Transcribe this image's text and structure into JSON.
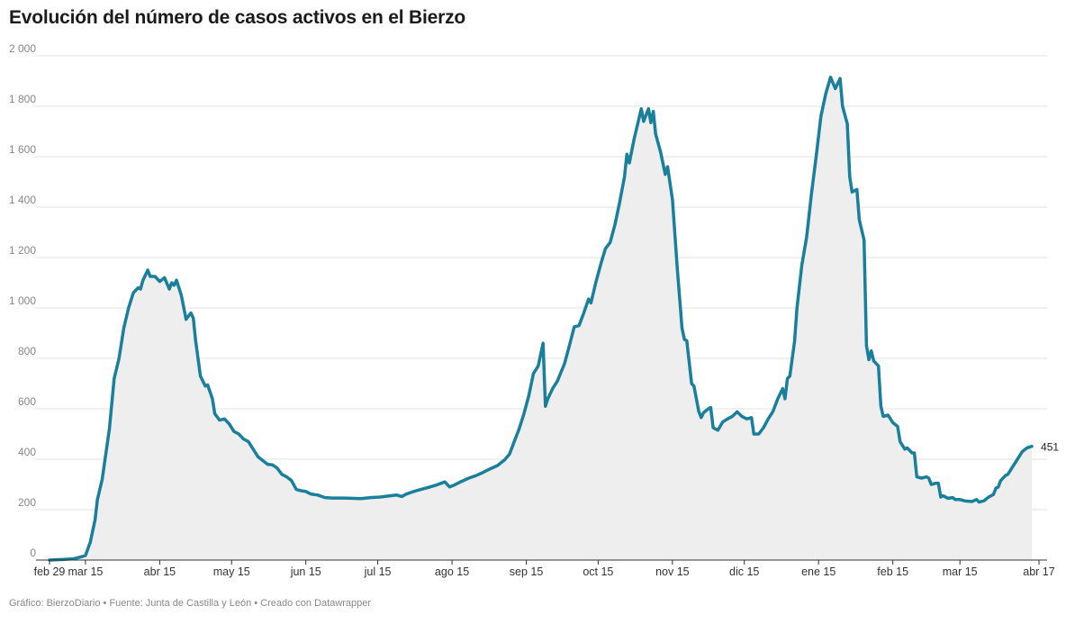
{
  "title": "Evolución del número de casos activos en el Bierzo",
  "footer": "Gráfico: BierzoDiario • Fuente: Junta de Castilla y León • Creado con Datawrapper",
  "colors": {
    "line": "#1a7f9b",
    "area": "#eeeeee",
    "grid": "#e2e2e2",
    "axis": "#333333"
  },
  "chart_data": {
    "type": "area",
    "title": "Evolución del número de casos activos en el Bierzo",
    "xlabel": "",
    "ylabel": "",
    "x_start": "2020-02-29",
    "x_end": "2021-04-17",
    "ylim": [
      0,
      2000
    ],
    "y_ticks": [
      0,
      200,
      400,
      600,
      800,
      1000,
      1200,
      1400,
      1600,
      1800,
      2000
    ],
    "y_tick_labels": [
      "0",
      "200",
      "400",
      "600",
      "800",
      "1 000",
      "1 200",
      "1 400",
      "1 600",
      "1 800",
      "2 000"
    ],
    "x_ticks": [
      {
        "date": "2020-02-29",
        "label": "feb 29"
      },
      {
        "date": "2020-03-15",
        "label": "mar 15"
      },
      {
        "date": "2020-04-15",
        "label": "abr 15"
      },
      {
        "date": "2020-05-15",
        "label": "may 15"
      },
      {
        "date": "2020-06-15",
        "label": "jun 15"
      },
      {
        "date": "2020-07-15",
        "label": "jul 15"
      },
      {
        "date": "2020-08-15",
        "label": "ago 15"
      },
      {
        "date": "2020-09-15",
        "label": "sep 15"
      },
      {
        "date": "2020-10-15",
        "label": "oct 15"
      },
      {
        "date": "2020-11-15",
        "label": "nov 15"
      },
      {
        "date": "2020-12-15",
        "label": "dic 15"
      },
      {
        "date": "2021-01-15",
        "label": "ene 15"
      },
      {
        "date": "2021-02-15",
        "label": "feb 15"
      },
      {
        "date": "2021-03-15",
        "label": "mar 15"
      },
      {
        "date": "2021-04-17",
        "label": "abr 17"
      }
    ],
    "grid": true,
    "end_label": "451",
    "series": [
      {
        "values": [
          [
            "2020-02-29",
            0
          ],
          [
            "2020-03-05",
            2
          ],
          [
            "2020-03-10",
            5
          ],
          [
            "2020-03-13",
            12
          ],
          [
            "2020-03-15",
            18
          ],
          [
            "2020-03-17",
            70
          ],
          [
            "2020-03-19",
            160
          ],
          [
            "2020-03-20",
            240
          ],
          [
            "2020-03-22",
            320
          ],
          [
            "2020-03-25",
            520
          ],
          [
            "2020-03-27",
            720
          ],
          [
            "2020-03-29",
            800
          ],
          [
            "2020-03-31",
            920
          ],
          [
            "2020-04-02",
            1000
          ],
          [
            "2020-04-04",
            1060
          ],
          [
            "2020-04-06",
            1080
          ],
          [
            "2020-04-07",
            1075
          ],
          [
            "2020-04-08",
            1110
          ],
          [
            "2020-04-10",
            1150
          ],
          [
            "2020-04-11",
            1125
          ],
          [
            "2020-04-13",
            1125
          ],
          [
            "2020-04-15",
            1105
          ],
          [
            "2020-04-17",
            1120
          ],
          [
            "2020-04-19",
            1075
          ],
          [
            "2020-04-20",
            1100
          ],
          [
            "2020-04-21",
            1090
          ],
          [
            "2020-04-22",
            1110
          ],
          [
            "2020-04-24",
            1050
          ],
          [
            "2020-04-26",
            955
          ],
          [
            "2020-04-28",
            980
          ],
          [
            "2020-04-29",
            960
          ],
          [
            "2020-04-30",
            870
          ],
          [
            "2020-05-02",
            730
          ],
          [
            "2020-05-04",
            690
          ],
          [
            "2020-05-05",
            695
          ],
          [
            "2020-05-07",
            640
          ],
          [
            "2020-05-08",
            580
          ],
          [
            "2020-05-10",
            555
          ],
          [
            "2020-05-12",
            560
          ],
          [
            "2020-05-14",
            540
          ],
          [
            "2020-05-16",
            510
          ],
          [
            "2020-05-18",
            500
          ],
          [
            "2020-05-20",
            480
          ],
          [
            "2020-05-22",
            470
          ],
          [
            "2020-05-24",
            440
          ],
          [
            "2020-05-26",
            410
          ],
          [
            "2020-05-28",
            395
          ],
          [
            "2020-05-30",
            380
          ],
          [
            "2020-06-01",
            378
          ],
          [
            "2020-06-03",
            365
          ],
          [
            "2020-06-05",
            340
          ],
          [
            "2020-06-07",
            330
          ],
          [
            "2020-06-09",
            315
          ],
          [
            "2020-06-11",
            280
          ],
          [
            "2020-06-13",
            275
          ],
          [
            "2020-06-15",
            272
          ],
          [
            "2020-06-17",
            262
          ],
          [
            "2020-06-20",
            258
          ],
          [
            "2020-06-23",
            248
          ],
          [
            "2020-06-26",
            246
          ],
          [
            "2020-06-30",
            246
          ],
          [
            "2020-07-04",
            245
          ],
          [
            "2020-07-08",
            244
          ],
          [
            "2020-07-12",
            248
          ],
          [
            "2020-07-16",
            250
          ],
          [
            "2020-07-20",
            255
          ],
          [
            "2020-07-23",
            258
          ],
          [
            "2020-07-25",
            252
          ],
          [
            "2020-07-27",
            262
          ],
          [
            "2020-07-30",
            272
          ],
          [
            "2020-08-02",
            280
          ],
          [
            "2020-08-05",
            288
          ],
          [
            "2020-08-08",
            296
          ],
          [
            "2020-08-12",
            310
          ],
          [
            "2020-08-14",
            290
          ],
          [
            "2020-08-16",
            298
          ],
          [
            "2020-08-19",
            312
          ],
          [
            "2020-08-22",
            325
          ],
          [
            "2020-08-25",
            335
          ],
          [
            "2020-08-28",
            348
          ],
          [
            "2020-08-31",
            362
          ],
          [
            "2020-09-03",
            375
          ],
          [
            "2020-09-06",
            398
          ],
          [
            "2020-09-08",
            420
          ],
          [
            "2020-09-10",
            470
          ],
          [
            "2020-09-12",
            520
          ],
          [
            "2020-09-14",
            580
          ],
          [
            "2020-09-16",
            650
          ],
          [
            "2020-09-18",
            740
          ],
          [
            "2020-09-20",
            770
          ],
          [
            "2020-09-22",
            860
          ],
          [
            "2020-09-23",
            610
          ],
          [
            "2020-09-24",
            640
          ],
          [
            "2020-09-26",
            680
          ],
          [
            "2020-09-28",
            710
          ],
          [
            "2020-10-01",
            780
          ],
          [
            "2020-10-03",
            850
          ],
          [
            "2020-10-05",
            925
          ],
          [
            "2020-10-07",
            930
          ],
          [
            "2020-10-09",
            980
          ],
          [
            "2020-10-11",
            1035
          ],
          [
            "2020-10-12",
            1020
          ],
          [
            "2020-10-14",
            1100
          ],
          [
            "2020-10-16",
            1170
          ],
          [
            "2020-10-18",
            1235
          ],
          [
            "2020-10-20",
            1260
          ],
          [
            "2020-10-22",
            1330
          ],
          [
            "2020-10-24",
            1420
          ],
          [
            "2020-10-26",
            1520
          ],
          [
            "2020-10-27",
            1610
          ],
          [
            "2020-10-28",
            1575
          ],
          [
            "2020-10-30",
            1670
          ],
          [
            "2020-11-01",
            1750
          ],
          [
            "2020-11-02",
            1790
          ],
          [
            "2020-11-03",
            1740
          ],
          [
            "2020-11-05",
            1790
          ],
          [
            "2020-11-06",
            1735
          ],
          [
            "2020-11-07",
            1780
          ],
          [
            "2020-11-08",
            1690
          ],
          [
            "2020-11-10",
            1620
          ],
          [
            "2020-11-12",
            1530
          ],
          [
            "2020-11-13",
            1560
          ],
          [
            "2020-11-15",
            1430
          ],
          [
            "2020-11-17",
            1160
          ],
          [
            "2020-11-19",
            920
          ],
          [
            "2020-11-20",
            875
          ],
          [
            "2020-11-21",
            870
          ],
          [
            "2020-11-23",
            700
          ],
          [
            "2020-11-24",
            690
          ],
          [
            "2020-11-26",
            590
          ],
          [
            "2020-11-27",
            565
          ],
          [
            "2020-11-28",
            585
          ],
          [
            "2020-11-30",
            600
          ],
          [
            "2020-12-01",
            605
          ],
          [
            "2020-12-02",
            525
          ],
          [
            "2020-12-04",
            515
          ],
          [
            "2020-12-06",
            548
          ],
          [
            "2020-12-08",
            560
          ],
          [
            "2020-12-10",
            570
          ],
          [
            "2020-12-12",
            588
          ],
          [
            "2020-12-14",
            570
          ],
          [
            "2020-12-16",
            560
          ],
          [
            "2020-12-18",
            565
          ],
          [
            "2020-12-19",
            500
          ],
          [
            "2020-12-21",
            500
          ],
          [
            "2020-12-23",
            525
          ],
          [
            "2020-12-25",
            560
          ],
          [
            "2020-12-27",
            590
          ],
          [
            "2020-12-29",
            640
          ],
          [
            "2020-12-31",
            680
          ],
          [
            "2021-01-01",
            640
          ],
          [
            "2021-01-02",
            720
          ],
          [
            "2021-01-03",
            730
          ],
          [
            "2021-01-05",
            870
          ],
          [
            "2021-01-06",
            1000
          ],
          [
            "2021-01-08",
            1170
          ],
          [
            "2021-01-10",
            1280
          ],
          [
            "2021-01-12",
            1450
          ],
          [
            "2021-01-14",
            1600
          ],
          [
            "2021-01-16",
            1760
          ],
          [
            "2021-01-18",
            1850
          ],
          [
            "2021-01-20",
            1915
          ],
          [
            "2021-01-22",
            1870
          ],
          [
            "2021-01-24",
            1910
          ],
          [
            "2021-01-25",
            1800
          ],
          [
            "2021-01-27",
            1730
          ],
          [
            "2021-01-28",
            1520
          ],
          [
            "2021-01-29",
            1460
          ],
          [
            "2021-01-31",
            1470
          ],
          [
            "2021-02-01",
            1350
          ],
          [
            "2021-02-03",
            1270
          ],
          [
            "2021-02-04",
            850
          ],
          [
            "2021-02-05",
            795
          ],
          [
            "2021-02-06",
            830
          ],
          [
            "2021-02-07",
            790
          ],
          [
            "2021-02-09",
            770
          ],
          [
            "2021-02-10",
            610
          ],
          [
            "2021-02-11",
            570
          ],
          [
            "2021-02-13",
            575
          ],
          [
            "2021-02-15",
            545
          ],
          [
            "2021-02-17",
            530
          ],
          [
            "2021-02-18",
            470
          ],
          [
            "2021-02-20",
            440
          ],
          [
            "2021-02-21",
            445
          ],
          [
            "2021-02-23",
            425
          ],
          [
            "2021-02-24",
            425
          ],
          [
            "2021-02-25",
            330
          ],
          [
            "2021-02-27",
            325
          ],
          [
            "2021-03-01",
            330
          ],
          [
            "2021-03-02",
            325
          ],
          [
            "2021-03-03",
            300
          ],
          [
            "2021-03-05",
            305
          ],
          [
            "2021-03-06",
            305
          ],
          [
            "2021-03-07",
            250
          ],
          [
            "2021-03-08",
            255
          ],
          [
            "2021-03-10",
            245
          ],
          [
            "2021-03-12",
            248
          ],
          [
            "2021-03-13",
            240
          ],
          [
            "2021-03-15",
            240
          ],
          [
            "2021-03-17",
            235
          ],
          [
            "2021-03-20",
            232
          ],
          [
            "2021-03-22",
            240
          ],
          [
            "2021-03-23",
            230
          ],
          [
            "2021-03-25",
            235
          ],
          [
            "2021-03-27",
            250
          ],
          [
            "2021-03-29",
            260
          ],
          [
            "2021-03-30",
            285
          ],
          [
            "2021-03-31",
            290
          ],
          [
            "2021-04-01",
            315
          ],
          [
            "2021-04-03",
            335
          ],
          [
            "2021-04-04",
            340
          ],
          [
            "2021-04-06",
            370
          ],
          [
            "2021-04-08",
            400
          ],
          [
            "2021-04-10",
            430
          ],
          [
            "2021-04-12",
            445
          ],
          [
            "2021-04-14",
            451
          ]
        ]
      }
    ]
  }
}
